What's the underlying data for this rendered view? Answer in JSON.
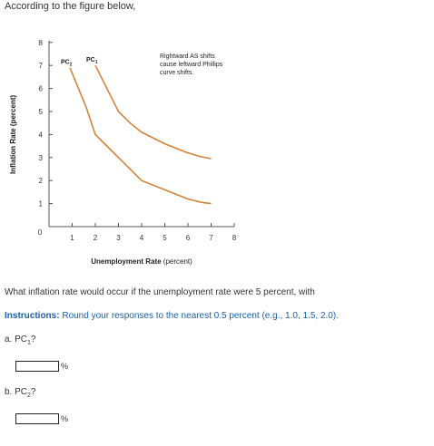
{
  "intro": "According to the figure below,",
  "chart_data": {
    "type": "line",
    "ylabel": "Inflation Rate (percent)",
    "xlabel_bold": "Unemployment Rate",
    "xlabel_rest": " (percent)",
    "x_ticks": [
      "1",
      "2",
      "3",
      "4",
      "5",
      "6",
      "7",
      "8"
    ],
    "y_ticks": [
      "1",
      "2",
      "3",
      "4",
      "5",
      "6",
      "7",
      "8"
    ],
    "origin_label": "0",
    "xlim": [
      0,
      8
    ],
    "ylim": [
      0,
      8
    ],
    "annotation": [
      "Rightward AS shifts",
      "cause leftward Phillips",
      "curve shifts."
    ],
    "series": [
      {
        "name": "PC2",
        "base": "PC",
        "sub": "2",
        "color": "#d2843a",
        "points": [
          [
            0.9,
            6.9
          ],
          [
            1.6,
            5.2
          ],
          [
            2.0,
            4.0
          ],
          [
            3.0,
            3.0
          ],
          [
            4.0,
            2.0
          ],
          [
            5.0,
            1.6
          ],
          [
            6.0,
            1.2
          ],
          [
            6.6,
            1.05
          ],
          [
            7.0,
            1.0
          ]
        ]
      },
      {
        "name": "PC1",
        "base": "PC",
        "sub": "1",
        "color": "#d2843a",
        "points": [
          [
            2.0,
            7.0
          ],
          [
            3.0,
            5.0
          ],
          [
            3.5,
            4.5
          ],
          [
            4.0,
            4.1
          ],
          [
            5.0,
            3.6
          ],
          [
            6.0,
            3.2
          ],
          [
            6.5,
            3.05
          ],
          [
            7.0,
            2.95
          ]
        ]
      }
    ]
  },
  "question": "What inflation rate would occur if the unemployment rate were 5 percent, with",
  "instructions": {
    "prefix": "Instructions:",
    "text": " Round your responses to the nearest 0.5 percent (e.g., 1.0, 1.5, 2.0)."
  },
  "parts": [
    {
      "prefix": "a. PC",
      "sub": "1",
      "suffix": "?",
      "value": "",
      "unit": "%"
    },
    {
      "prefix": "b. PC",
      "sub": "2",
      "suffix": "?",
      "value": "",
      "unit": "%"
    }
  ]
}
